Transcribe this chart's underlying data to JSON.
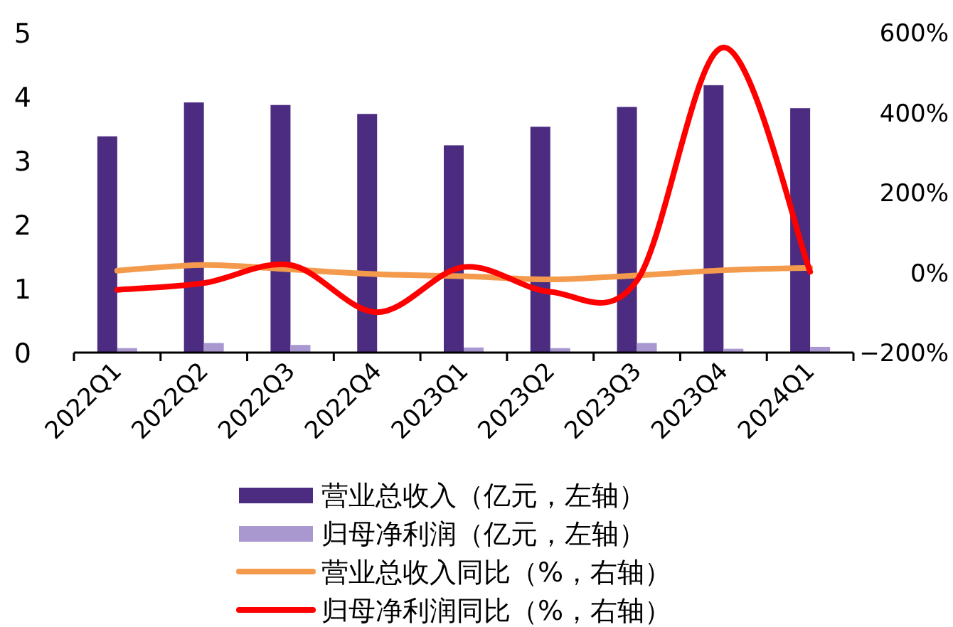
{
  "chart_data": {
    "type": "bar",
    "categories": [
      "2022Q1",
      "2022Q2",
      "2022Q3",
      "2022Q4",
      "2023Q1",
      "2023Q2",
      "2023Q3",
      "2023Q4",
      "2024Q1"
    ],
    "series": [
      {
        "name": "营业总收入（亿元，左轴）",
        "color": "#4b2c80",
        "values": [
          3.38,
          3.91,
          3.87,
          3.73,
          3.24,
          3.53,
          3.84,
          4.18,
          3.82
        ]
      },
      {
        "name": "归母净利润（亿元，左轴）",
        "color": "#a898cf",
        "values": [
          0.07,
          0.15,
          0.12,
          0,
          0.08,
          0.07,
          0.15,
          0.06,
          0.09
        ]
      },
      {
        "name": "营业总收入同比（%，右轴）",
        "type": "line",
        "axis": "y2",
        "color": "#f39a4d",
        "values": [
          5,
          19,
          8,
          -4,
          -9,
          -17,
          -7,
          6,
          12
        ]
      },
      {
        "name": "归母净利润同比（%，右轴）",
        "type": "line",
        "axis": "y2",
        "color": "#ff0000",
        "values": [
          -43,
          -26,
          19,
          -99,
          14,
          -48,
          -20,
          563,
          2
        ]
      }
    ],
    "ylim": [
      0,
      5
    ],
    "yticks": [
      0,
      1,
      2,
      3,
      4,
      5
    ],
    "y2lim": [
      -200,
      600
    ],
    "y2ticks": [
      {
        "value": -200,
        "label": "−200%"
      },
      {
        "value": 0,
        "label": "0%"
      },
      {
        "value": 200,
        "label": "200%"
      },
      {
        "value": 400,
        "label": "400%"
      },
      {
        "value": 600,
        "label": "600%"
      }
    ],
    "legend": "bottom",
    "grid": false
  }
}
